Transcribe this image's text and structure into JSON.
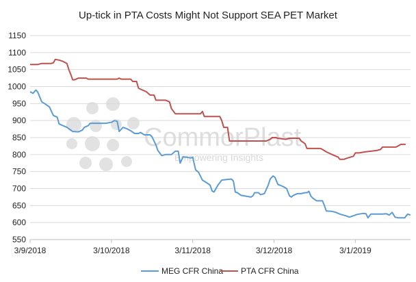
{
  "chart_data": {
    "type": "line",
    "title": "Up-tick in PTA Costs Might Not Support SEA PET Market",
    "xlabel": "",
    "ylabel": "",
    "ylim": [
      550,
      1150
    ],
    "yticks": [
      550,
      600,
      650,
      700,
      750,
      800,
      850,
      900,
      950,
      1000,
      1050,
      1100,
      1150
    ],
    "x_range_days": [
      0,
      393
    ],
    "xticks": [
      {
        "label": "3/9/2018",
        "day": 0
      },
      {
        "label": "3/10/2018",
        "day": 84
      },
      {
        "label": "3/11/2018",
        "day": 168
      },
      {
        "label": "3/12/2018",
        "day": 252
      },
      {
        "label": "3/1/2019",
        "day": 336
      }
    ],
    "grid": true,
    "legend_position": "bottom",
    "series": [
      {
        "name": "MEG CFR China",
        "color": "#5b9bd5",
        "points": [
          [
            0,
            985
          ],
          [
            3,
            980
          ],
          [
            6,
            990
          ],
          [
            8,
            983
          ],
          [
            12,
            955
          ],
          [
            15,
            950
          ],
          [
            20,
            940
          ],
          [
            24,
            915
          ],
          [
            28,
            910
          ],
          [
            30,
            890
          ],
          [
            34,
            885
          ],
          [
            38,
            880
          ],
          [
            44,
            868
          ],
          [
            50,
            867
          ],
          [
            54,
            872
          ],
          [
            56,
            880
          ],
          [
            60,
            885
          ],
          [
            62,
            892
          ],
          [
            66,
            892
          ],
          [
            72,
            892
          ],
          [
            78,
            892
          ],
          [
            84,
            895
          ],
          [
            87,
            900
          ],
          [
            90,
            898
          ],
          [
            92,
            868
          ],
          [
            96,
            880
          ],
          [
            100,
            876
          ],
          [
            104,
            870
          ],
          [
            108,
            862
          ],
          [
            112,
            862
          ],
          [
            114,
            865
          ],
          [
            118,
            858
          ],
          [
            124,
            858
          ],
          [
            126,
            852
          ],
          [
            130,
            828
          ],
          [
            132,
            812
          ],
          [
            136,
            797
          ],
          [
            140,
            800
          ],
          [
            146,
            800
          ],
          [
            150,
            810
          ],
          [
            153,
            810
          ],
          [
            155,
            775
          ],
          [
            158,
            793
          ],
          [
            162,
            792
          ],
          [
            166,
            790
          ],
          [
            168,
            792
          ],
          [
            171,
            755
          ],
          [
            174,
            748
          ],
          [
            178,
            725
          ],
          [
            182,
            718
          ],
          [
            186,
            710
          ],
          [
            188,
            693
          ],
          [
            190,
            690
          ],
          [
            194,
            710
          ],
          [
            198,
            725
          ],
          [
            204,
            727
          ],
          [
            208,
            728
          ],
          [
            210,
            722
          ],
          [
            212,
            690
          ],
          [
            214,
            688
          ],
          [
            218,
            680
          ],
          [
            222,
            678
          ],
          [
            228,
            675
          ],
          [
            230,
            678
          ],
          [
            232,
            688
          ],
          [
            236,
            688
          ],
          [
            238,
            682
          ],
          [
            242,
            685
          ],
          [
            246,
            710
          ],
          [
            248,
            728
          ],
          [
            251,
            737
          ],
          [
            253,
            733
          ],
          [
            256,
            712
          ],
          [
            258,
            710
          ],
          [
            262,
            705
          ],
          [
            265,
            700
          ],
          [
            268,
            678
          ],
          [
            270,
            675
          ],
          [
            272,
            680
          ],
          [
            276,
            685
          ],
          [
            280,
            685
          ],
          [
            284,
            688
          ],
          [
            286,
            688
          ],
          [
            288,
            692
          ],
          [
            290,
            678
          ],
          [
            292,
            672
          ],
          [
            296,
            664
          ],
          [
            302,
            664
          ],
          [
            304,
            650
          ],
          [
            306,
            634
          ],
          [
            312,
            633
          ],
          [
            316,
            630
          ],
          [
            320,
            625
          ],
          [
            326,
            620
          ],
          [
            330,
            616
          ],
          [
            334,
            620
          ],
          [
            338,
            624
          ],
          [
            344,
            627
          ],
          [
            347,
            626
          ],
          [
            349,
            614
          ],
          [
            352,
            625
          ],
          [
            358,
            625
          ],
          [
            364,
            625
          ],
          [
            368,
            626
          ],
          [
            371,
            622
          ],
          [
            374,
            630
          ],
          [
            377,
            616
          ],
          [
            380,
            614
          ],
          [
            384,
            614
          ],
          [
            387,
            614
          ],
          [
            390,
            625
          ],
          [
            393,
            622
          ]
        ]
      },
      {
        "name": "PTA CFR China",
        "color": "#c0504d",
        "points": [
          [
            0,
            1065
          ],
          [
            8,
            1065
          ],
          [
            12,
            1068
          ],
          [
            16,
            1068
          ],
          [
            22,
            1068
          ],
          [
            24,
            1070
          ],
          [
            26,
            1080
          ],
          [
            30,
            1078
          ],
          [
            34,
            1074
          ],
          [
            38,
            1068
          ],
          [
            40,
            1050
          ],
          [
            42,
            1036
          ],
          [
            44,
            1020
          ],
          [
            46,
            1020
          ],
          [
            50,
            1025
          ],
          [
            58,
            1025
          ],
          [
            60,
            1022
          ],
          [
            70,
            1022
          ],
          [
            84,
            1022
          ],
          [
            90,
            1022
          ],
          [
            92,
            1025
          ],
          [
            94,
            1022
          ],
          [
            104,
            1022
          ],
          [
            106,
            1015
          ],
          [
            110,
            1015
          ],
          [
            112,
            995
          ],
          [
            116,
            990
          ],
          [
            120,
            985
          ],
          [
            124,
            975
          ],
          [
            128,
            975
          ],
          [
            130,
            960
          ],
          [
            140,
            960
          ],
          [
            144,
            955
          ],
          [
            146,
            935
          ],
          [
            150,
            920
          ],
          [
            156,
            920
          ],
          [
            170,
            920
          ],
          [
            172,
            920
          ],
          [
            176,
            920
          ],
          [
            178,
            927
          ],
          [
            180,
            912
          ],
          [
            190,
            912
          ],
          [
            196,
            912
          ],
          [
            198,
            900
          ],
          [
            200,
            880
          ],
          [
            204,
            880
          ],
          [
            206,
            840
          ],
          [
            220,
            840
          ],
          [
            236,
            840
          ],
          [
            244,
            840
          ],
          [
            248,
            845
          ],
          [
            250,
            850
          ],
          [
            254,
            850
          ],
          [
            256,
            848
          ],
          [
            264,
            845
          ],
          [
            268,
            848
          ],
          [
            270,
            848
          ],
          [
            278,
            848
          ],
          [
            280,
            840
          ],
          [
            284,
            832
          ],
          [
            286,
            818
          ],
          [
            292,
            818
          ],
          [
            300,
            818
          ],
          [
            302,
            815
          ],
          [
            306,
            808
          ],
          [
            312,
            800
          ],
          [
            316,
            795
          ],
          [
            318,
            793
          ],
          [
            320,
            786
          ],
          [
            324,
            786
          ],
          [
            328,
            790
          ],
          [
            334,
            795
          ],
          [
            336,
            805
          ],
          [
            340,
            805
          ],
          [
            346,
            808
          ],
          [
            352,
            810
          ],
          [
            358,
            812
          ],
          [
            362,
            815
          ],
          [
            364,
            822
          ],
          [
            370,
            822
          ],
          [
            374,
            822
          ],
          [
            378,
            822
          ],
          [
            380,
            825
          ],
          [
            383,
            830
          ],
          [
            388,
            830
          ]
        ]
      }
    ]
  },
  "watermark": {
    "name": "CommorPlast",
    "tagline": "Empowering Insights"
  }
}
